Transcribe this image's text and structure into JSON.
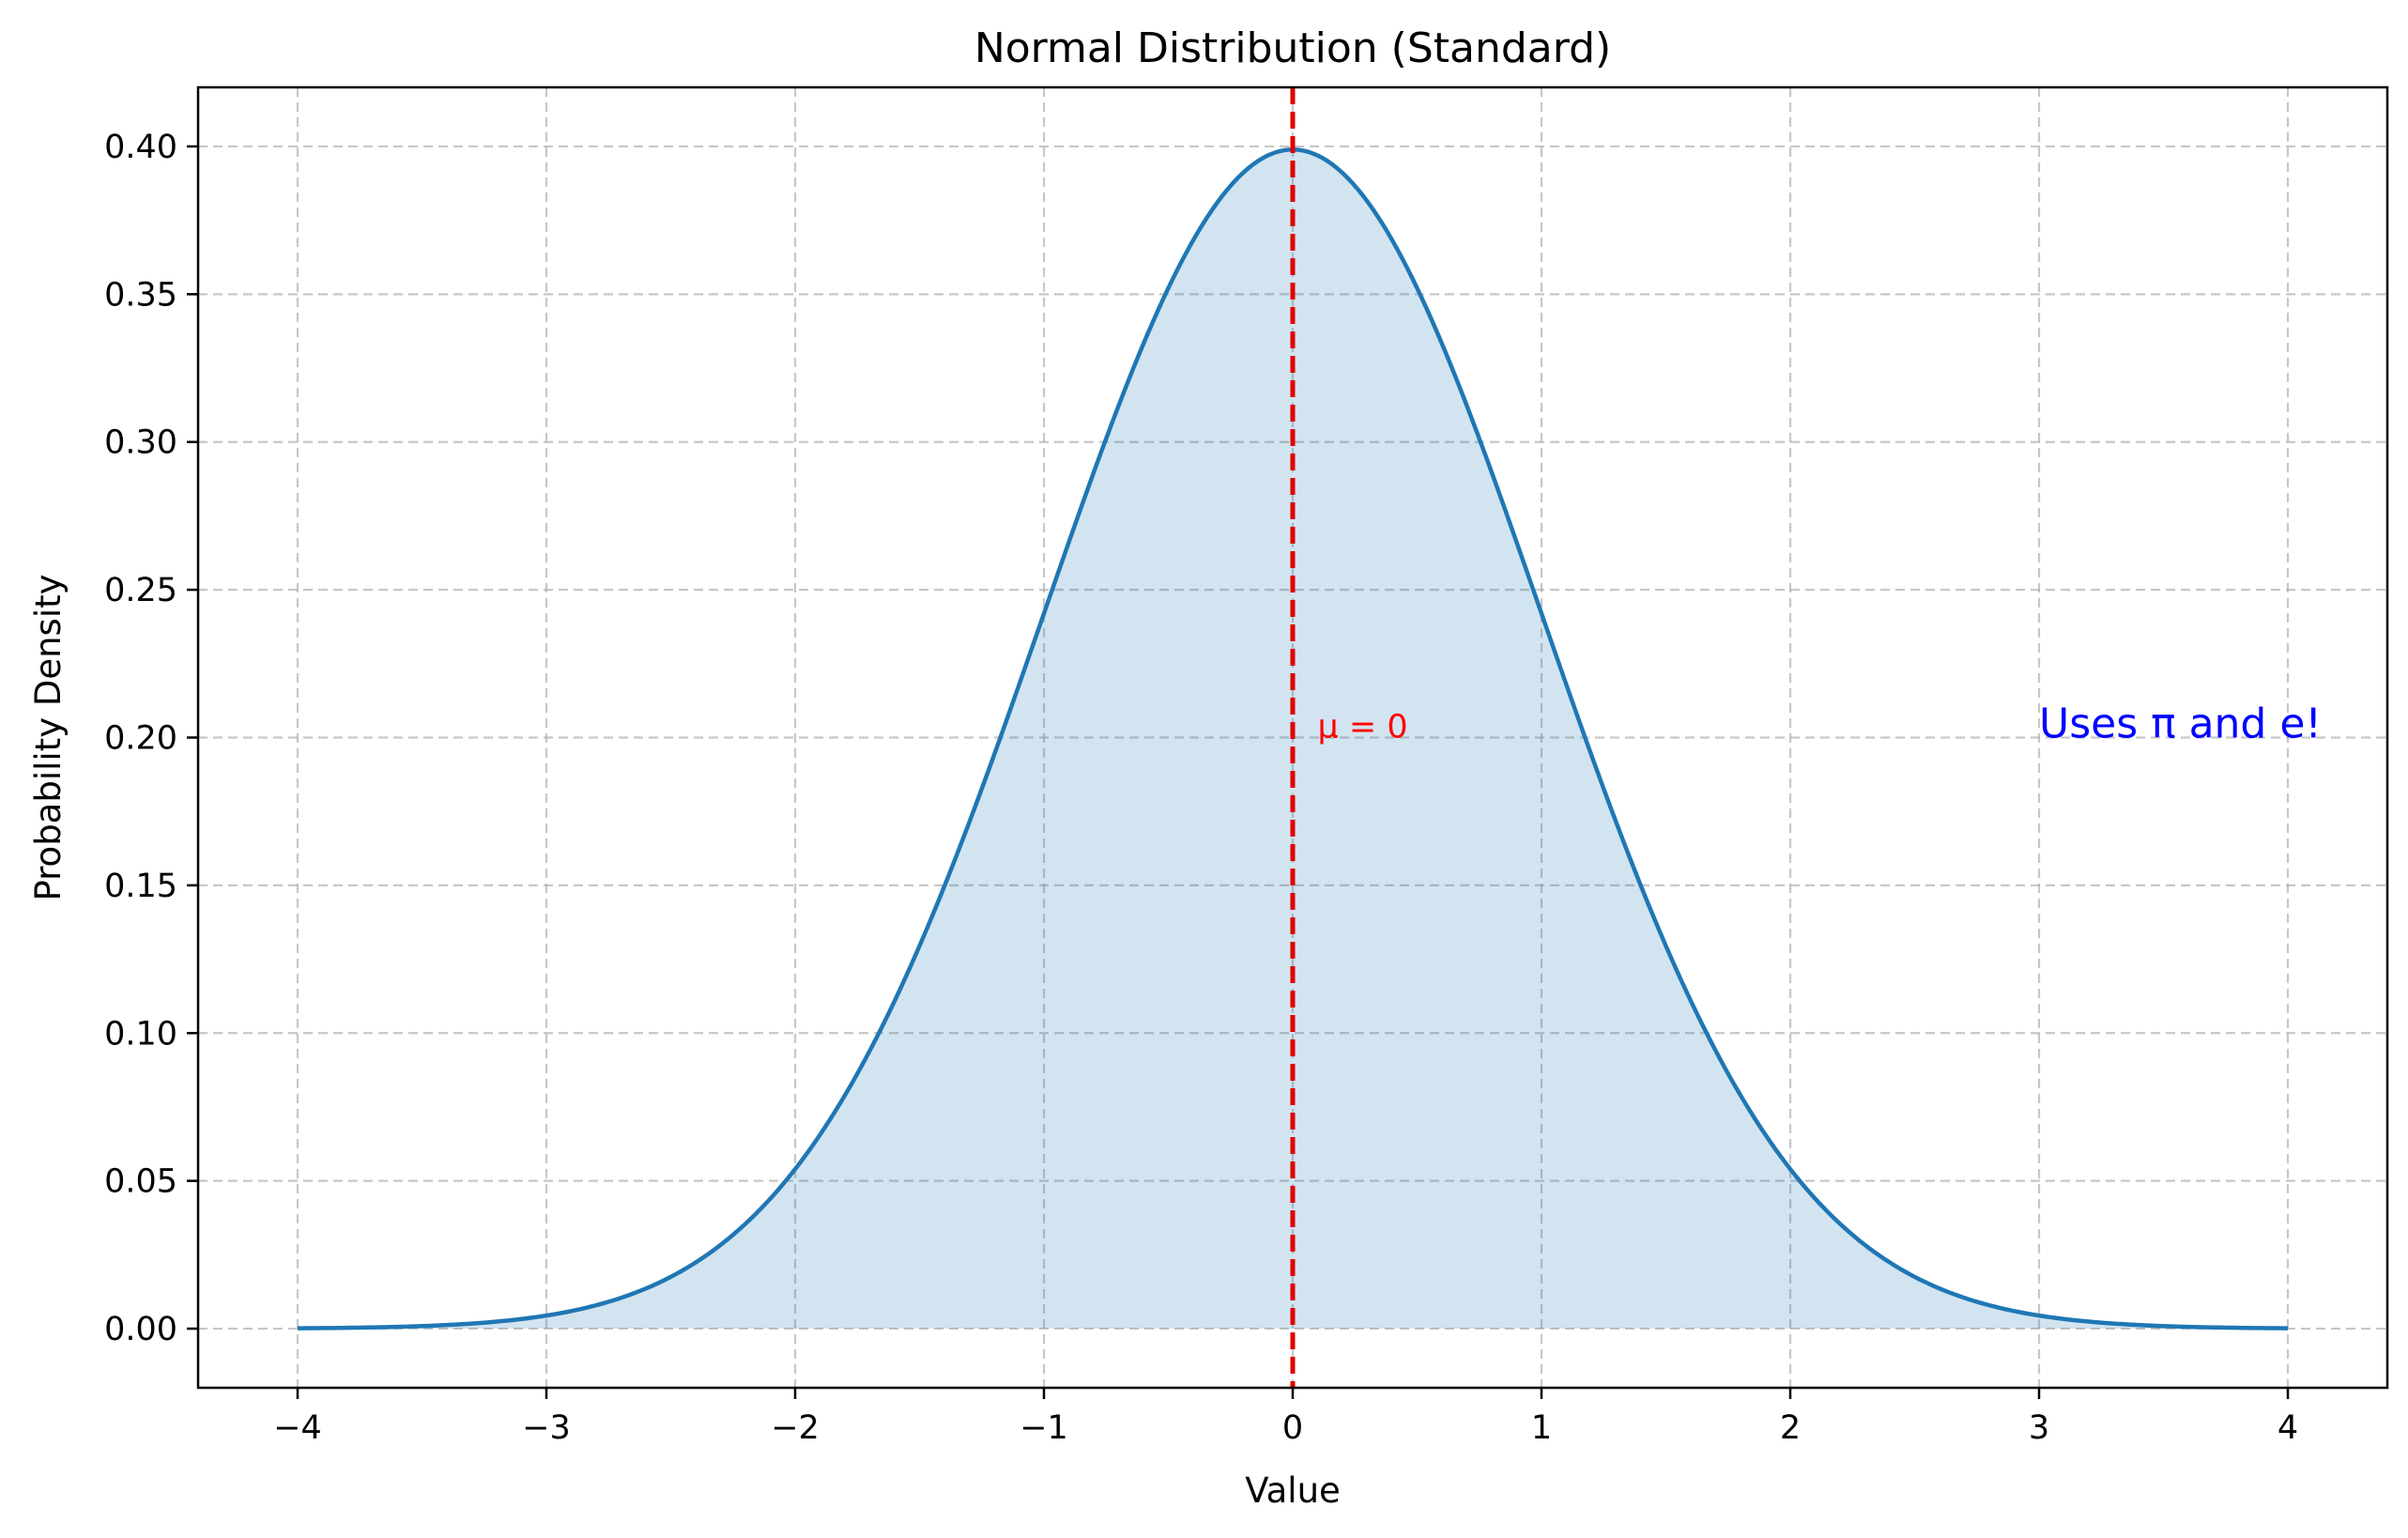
{
  "chart_data": {
    "type": "area",
    "title": "Normal Distribution (Standard)",
    "xlabel": "Value",
    "ylabel": "Probability Density",
    "xlim": [
      -4.4,
      4.4
    ],
    "ylim": [
      -0.02,
      0.42
    ],
    "x_ticks": [
      -4,
      -3,
      -2,
      -1,
      0,
      1,
      2,
      3,
      4
    ],
    "x_tick_labels": [
      "−4",
      "−3",
      "−2",
      "−1",
      "0",
      "1",
      "2",
      "3",
      "4"
    ],
    "y_ticks": [
      0.0,
      0.05,
      0.1,
      0.15,
      0.2,
      0.25,
      0.3,
      0.35,
      0.4
    ],
    "y_tick_labels": [
      "0.00",
      "0.05",
      "0.10",
      "0.15",
      "0.20",
      "0.25",
      "0.30",
      "0.35",
      "0.40"
    ],
    "grid": true,
    "series": [
      {
        "color": "#1f77b4",
        "fill_color": "#1f77b4",
        "fill_opacity": 0.2,
        "x": [
          -4.0,
          -3.5,
          -3.0,
          -2.5,
          -2.0,
          -1.75,
          -1.5,
          -1.25,
          -1.0,
          -0.75,
          -0.5,
          -0.25,
          0.0,
          0.25,
          0.5,
          0.75,
          1.0,
          1.25,
          1.5,
          1.75,
          2.0,
          2.5,
          3.0,
          3.5,
          4.0
        ],
        "y": [
          0.0001,
          0.0009,
          0.0044,
          0.0175,
          0.054,
          0.0863,
          0.1295,
          0.1826,
          0.242,
          0.3011,
          0.3521,
          0.3867,
          0.3989,
          0.3867,
          0.3521,
          0.3011,
          0.242,
          0.1826,
          0.1295,
          0.0863,
          0.054,
          0.0175,
          0.0044,
          0.0009,
          0.0001
        ]
      }
    ],
    "mean_line": {
      "x": 0,
      "color": "#e00000",
      "style": "dashed"
    },
    "annotations": [
      {
        "text": "μ = 0",
        "x": 0.1,
        "y": 0.2,
        "color": "#ff0000"
      },
      {
        "text": "Uses π and e!",
        "x": 3.0,
        "y": 0.2,
        "color": "#0000ff"
      }
    ]
  }
}
